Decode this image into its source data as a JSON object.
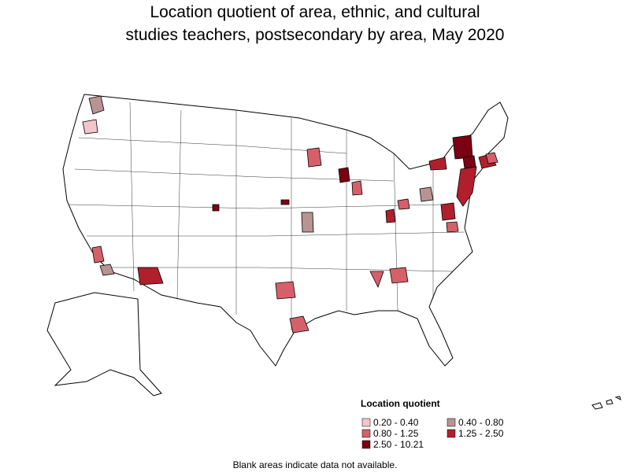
{
  "title_lines": [
    "Location quotient of area, ethnic, and cultural",
    "studies teachers, postsecondary by area, May 2020"
  ],
  "legend": {
    "title": "Location quotient",
    "items": [
      {
        "label": "0.20 - 0.40",
        "color": "#f5c4cb"
      },
      {
        "label": "0.40 - 0.80",
        "color": "#b89392"
      },
      {
        "label": "0.80 - 1.25",
        "color": "#d6606a"
      },
      {
        "label": "1.25 - 2.50",
        "color": "#b11f2d"
      },
      {
        "label": "2.50 - 10.21",
        "color": "#7a0012"
      }
    ]
  },
  "footnote": "Blank areas indicate data not available."
}
